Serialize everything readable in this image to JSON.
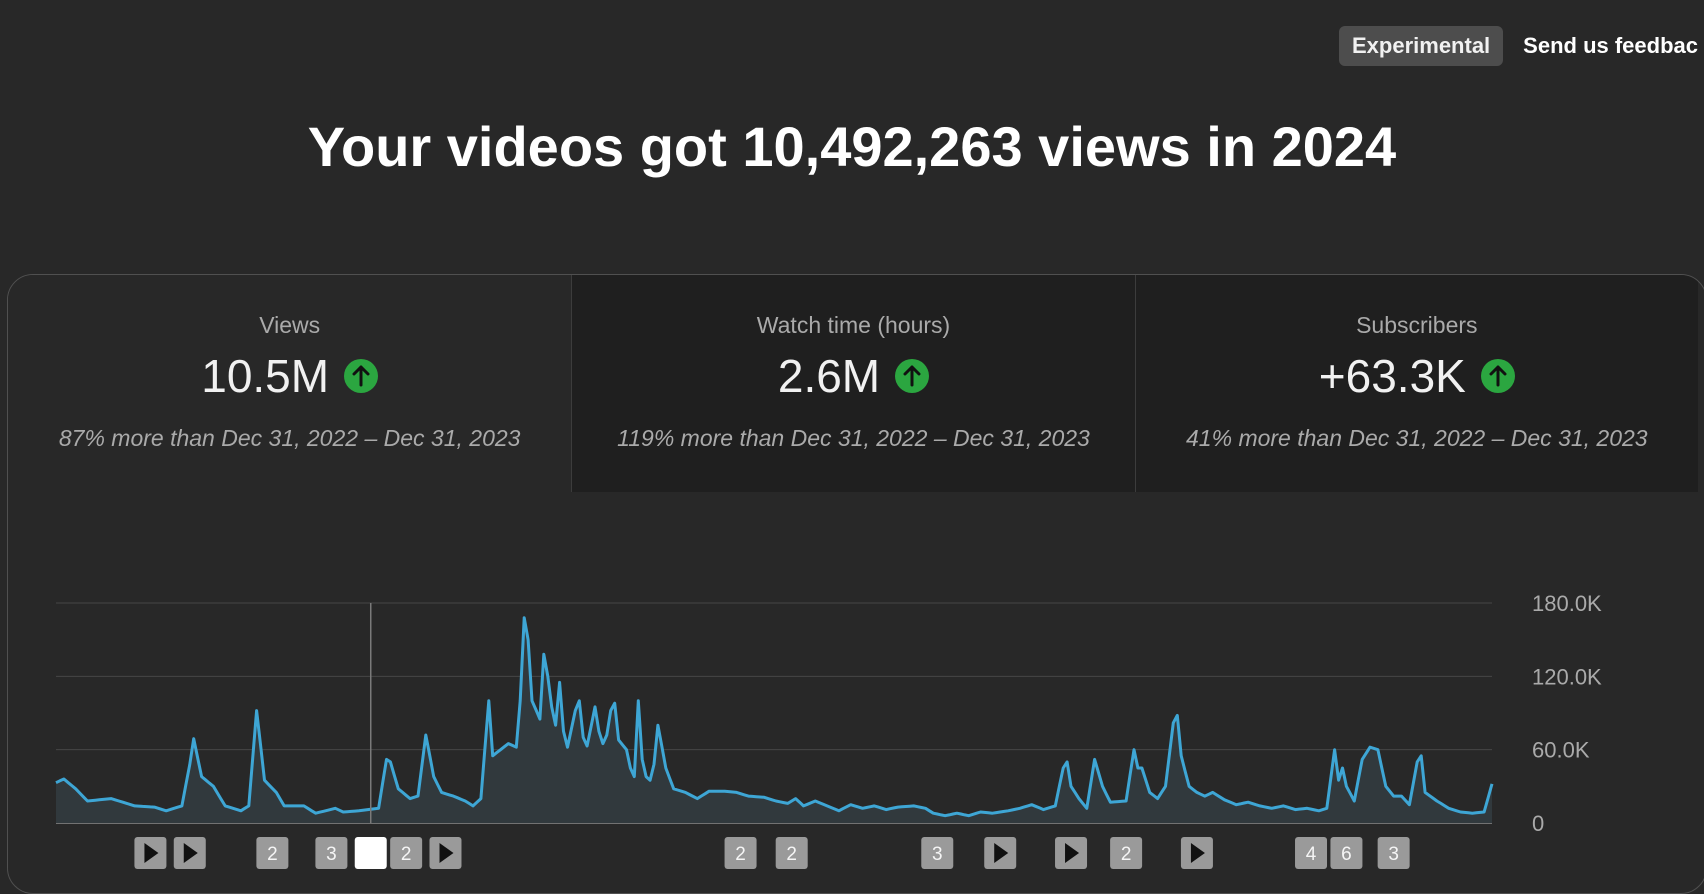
{
  "topbar": {
    "experimental_label": "Experimental",
    "feedback_label": "Send us feedbac"
  },
  "headline": "Your videos got 10,492,263 views in 2024",
  "tabs": [
    {
      "label": "Views",
      "value": "10.5M",
      "compare": "87% more than Dec 31, 2022 – Dec 31, 2023",
      "trend": "up",
      "selected": true
    },
    {
      "label": "Watch time (hours)",
      "value": "2.6M",
      "compare": "119% more than Dec 31, 2022 – Dec 31, 2023",
      "trend": "up",
      "selected": false
    },
    {
      "label": "Subscribers",
      "value": "+63.3K",
      "compare": "41% more than Dec 31, 2022 – Dec 31, 2023",
      "trend": "up",
      "selected": false
    }
  ],
  "colors": {
    "line": "#3ea6d5",
    "trend_up": "#2ba640",
    "marker": "#9a9a9a",
    "marker_selected": "#ffffff"
  },
  "chart_data": {
    "type": "area",
    "metric": "Views",
    "x_count": 366,
    "ylim": [
      0,
      180000
    ],
    "y_ticks": [
      {
        "value": 0,
        "label": "0"
      },
      {
        "value": 60000,
        "label": "60.0K"
      },
      {
        "value": 120000,
        "label": "120.0K"
      },
      {
        "value": 180000,
        "label": "180.0K"
      }
    ],
    "grid": true,
    "hover_index": 80,
    "anchors": [
      [
        0,
        33000
      ],
      [
        2,
        36000
      ],
      [
        5,
        28000
      ],
      [
        8,
        18000
      ],
      [
        14,
        20000
      ],
      [
        20,
        14000
      ],
      [
        25,
        13000
      ],
      [
        28,
        10000
      ],
      [
        32,
        14000
      ],
      [
        34,
        48000
      ],
      [
        35,
        69000
      ],
      [
        37,
        38000
      ],
      [
        40,
        30000
      ],
      [
        43,
        14000
      ],
      [
        47,
        10000
      ],
      [
        49,
        14000
      ],
      [
        51,
        92000
      ],
      [
        53,
        35000
      ],
      [
        56,
        25000
      ],
      [
        58,
        14000
      ],
      [
        63,
        14000
      ],
      [
        66,
        8000
      ],
      [
        71,
        12000
      ],
      [
        73,
        9000
      ],
      [
        77,
        10000
      ],
      [
        82,
        12000
      ],
      [
        84,
        52000
      ],
      [
        85,
        50000
      ],
      [
        87,
        28000
      ],
      [
        90,
        20000
      ],
      [
        92,
        22000
      ],
      [
        94,
        72000
      ],
      [
        96,
        38000
      ],
      [
        98,
        25000
      ],
      [
        101,
        22000
      ],
      [
        104,
        18000
      ],
      [
        106,
        14000
      ],
      [
        108,
        20000
      ],
      [
        110,
        100000
      ],
      [
        111,
        55000
      ],
      [
        113,
        60000
      ],
      [
        115,
        65000
      ],
      [
        117,
        62000
      ],
      [
        118,
        100000
      ],
      [
        119,
        168000
      ],
      [
        120,
        150000
      ],
      [
        121,
        100000
      ],
      [
        123,
        85000
      ],
      [
        124,
        138000
      ],
      [
        125,
        120000
      ],
      [
        126,
        95000
      ],
      [
        127,
        80000
      ],
      [
        128,
        115000
      ],
      [
        129,
        75000
      ],
      [
        130,
        62000
      ],
      [
        132,
        92000
      ],
      [
        133,
        100000
      ],
      [
        134,
        70000
      ],
      [
        135,
        63000
      ],
      [
        137,
        95000
      ],
      [
        138,
        75000
      ],
      [
        139,
        65000
      ],
      [
        140,
        72000
      ],
      [
        141,
        92000
      ],
      [
        142,
        98000
      ],
      [
        143,
        68000
      ],
      [
        145,
        60000
      ],
      [
        146,
        45000
      ],
      [
        147,
        38000
      ],
      [
        148,
        100000
      ],
      [
        149,
        52000
      ],
      [
        150,
        38000
      ],
      [
        151,
        35000
      ],
      [
        152,
        48000
      ],
      [
        153,
        80000
      ],
      [
        155,
        45000
      ],
      [
        157,
        28000
      ],
      [
        160,
        25000
      ],
      [
        163,
        20000
      ],
      [
        166,
        26000
      ],
      [
        170,
        26000
      ],
      [
        173,
        25000
      ],
      [
        176,
        22000
      ],
      [
        180,
        21000
      ],
      [
        183,
        18000
      ],
      [
        186,
        16000
      ],
      [
        188,
        20000
      ],
      [
        190,
        14000
      ],
      [
        193,
        18000
      ],
      [
        196,
        14000
      ],
      [
        199,
        10000
      ],
      [
        202,
        15000
      ],
      [
        205,
        12000
      ],
      [
        208,
        14000
      ],
      [
        211,
        11000
      ],
      [
        214,
        13000
      ],
      [
        218,
        14000
      ],
      [
        221,
        12000
      ],
      [
        223,
        8000
      ],
      [
        226,
        6000
      ],
      [
        229,
        8000
      ],
      [
        232,
        6000
      ],
      [
        235,
        9000
      ],
      [
        238,
        8000
      ],
      [
        242,
        10000
      ],
      [
        245,
        12000
      ],
      [
        248,
        15000
      ],
      [
        251,
        11000
      ],
      [
        254,
        14000
      ],
      [
        256,
        45000
      ],
      [
        257,
        50000
      ],
      [
        258,
        30000
      ],
      [
        260,
        20000
      ],
      [
        262,
        12000
      ],
      [
        264,
        52000
      ],
      [
        266,
        30000
      ],
      [
        268,
        17000
      ],
      [
        272,
        18000
      ],
      [
        274,
        60000
      ],
      [
        275,
        45000
      ],
      [
        276,
        45000
      ],
      [
        278,
        25000
      ],
      [
        280,
        20000
      ],
      [
        282,
        30000
      ],
      [
        284,
        82000
      ],
      [
        285,
        88000
      ],
      [
        286,
        55000
      ],
      [
        288,
        30000
      ],
      [
        290,
        25000
      ],
      [
        292,
        22000
      ],
      [
        294,
        25000
      ],
      [
        297,
        19000
      ],
      [
        300,
        15000
      ],
      [
        303,
        17000
      ],
      [
        306,
        14000
      ],
      [
        309,
        12000
      ],
      [
        312,
        14000
      ],
      [
        315,
        11000
      ],
      [
        318,
        12000
      ],
      [
        321,
        10000
      ],
      [
        323,
        12000
      ],
      [
        325,
        60000
      ],
      [
        326,
        35000
      ],
      [
        327,
        45000
      ],
      [
        328,
        30000
      ],
      [
        330,
        18000
      ],
      [
        332,
        52000
      ],
      [
        334,
        62000
      ],
      [
        336,
        60000
      ],
      [
        338,
        30000
      ],
      [
        340,
        22000
      ],
      [
        342,
        22000
      ],
      [
        344,
        15000
      ],
      [
        346,
        50000
      ],
      [
        347,
        55000
      ],
      [
        348,
        25000
      ],
      [
        351,
        18000
      ],
      [
        354,
        12000
      ],
      [
        357,
        9000
      ],
      [
        360,
        8000
      ],
      [
        363,
        9000
      ],
      [
        365,
        32000
      ]
    ],
    "markers": [
      {
        "index": 24,
        "label": "",
        "kind": "video"
      },
      {
        "index": 34,
        "label": "",
        "kind": "video"
      },
      {
        "index": 55,
        "label": "2",
        "kind": "count"
      },
      {
        "index": 70,
        "label": "3",
        "kind": "count"
      },
      {
        "index": 80,
        "label": "",
        "kind": "selected"
      },
      {
        "index": 89,
        "label": "2",
        "kind": "count"
      },
      {
        "index": 99,
        "label": "",
        "kind": "video"
      },
      {
        "index": 174,
        "label": "2",
        "kind": "count"
      },
      {
        "index": 187,
        "label": "2",
        "kind": "count"
      },
      {
        "index": 224,
        "label": "3",
        "kind": "count"
      },
      {
        "index": 240,
        "label": "",
        "kind": "video"
      },
      {
        "index": 258,
        "label": "",
        "kind": "video"
      },
      {
        "index": 272,
        "label": "2",
        "kind": "count"
      },
      {
        "index": 290,
        "label": "",
        "kind": "video"
      },
      {
        "index": 319,
        "label": "4",
        "kind": "count"
      },
      {
        "index": 328,
        "label": "6",
        "kind": "count"
      },
      {
        "index": 340,
        "label": "3",
        "kind": "count"
      }
    ]
  }
}
